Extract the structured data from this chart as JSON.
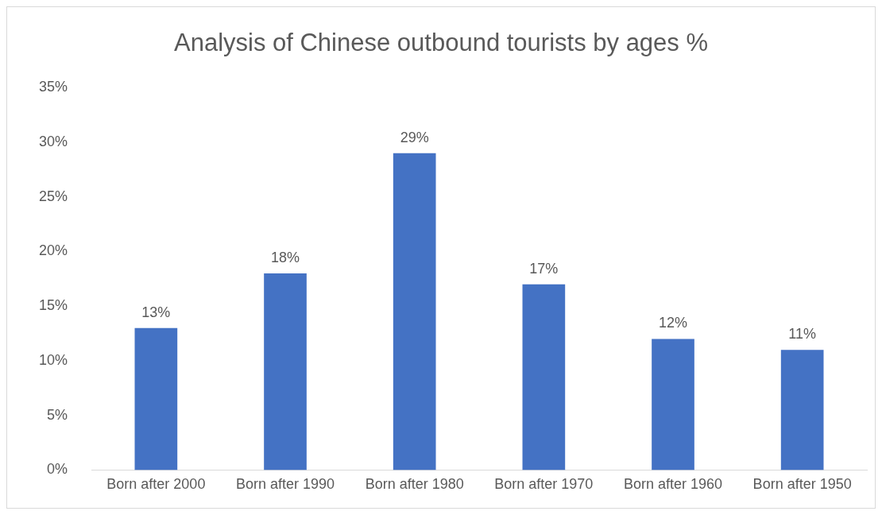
{
  "chart_data": {
    "type": "bar",
    "title": "Analysis of Chinese outbound tourists by ages %",
    "categories": [
      "Born after 2000",
      "Born after 1990",
      "Born after 1980",
      "Born after 1970",
      "Born after 1960",
      "Born after 1950"
    ],
    "values": [
      13,
      18,
      29,
      17,
      12,
      11
    ],
    "value_labels": [
      "13%",
      "18%",
      "29%",
      "17%",
      "12%",
      "11%"
    ],
    "color": "#4472c4",
    "ylim": [
      0,
      35
    ],
    "yticks": [
      {
        "value": 0,
        "label": "0%"
      },
      {
        "value": 5,
        "label": "5%"
      },
      {
        "value": 10,
        "label": "10%"
      },
      {
        "value": 15,
        "label": "15%"
      },
      {
        "value": 20,
        "label": "20%"
      },
      {
        "value": 25,
        "label": "25%"
      },
      {
        "value": 30,
        "label": "30%"
      },
      {
        "value": 35,
        "label": "35%"
      }
    ],
    "grid": false,
    "legend": false
  }
}
